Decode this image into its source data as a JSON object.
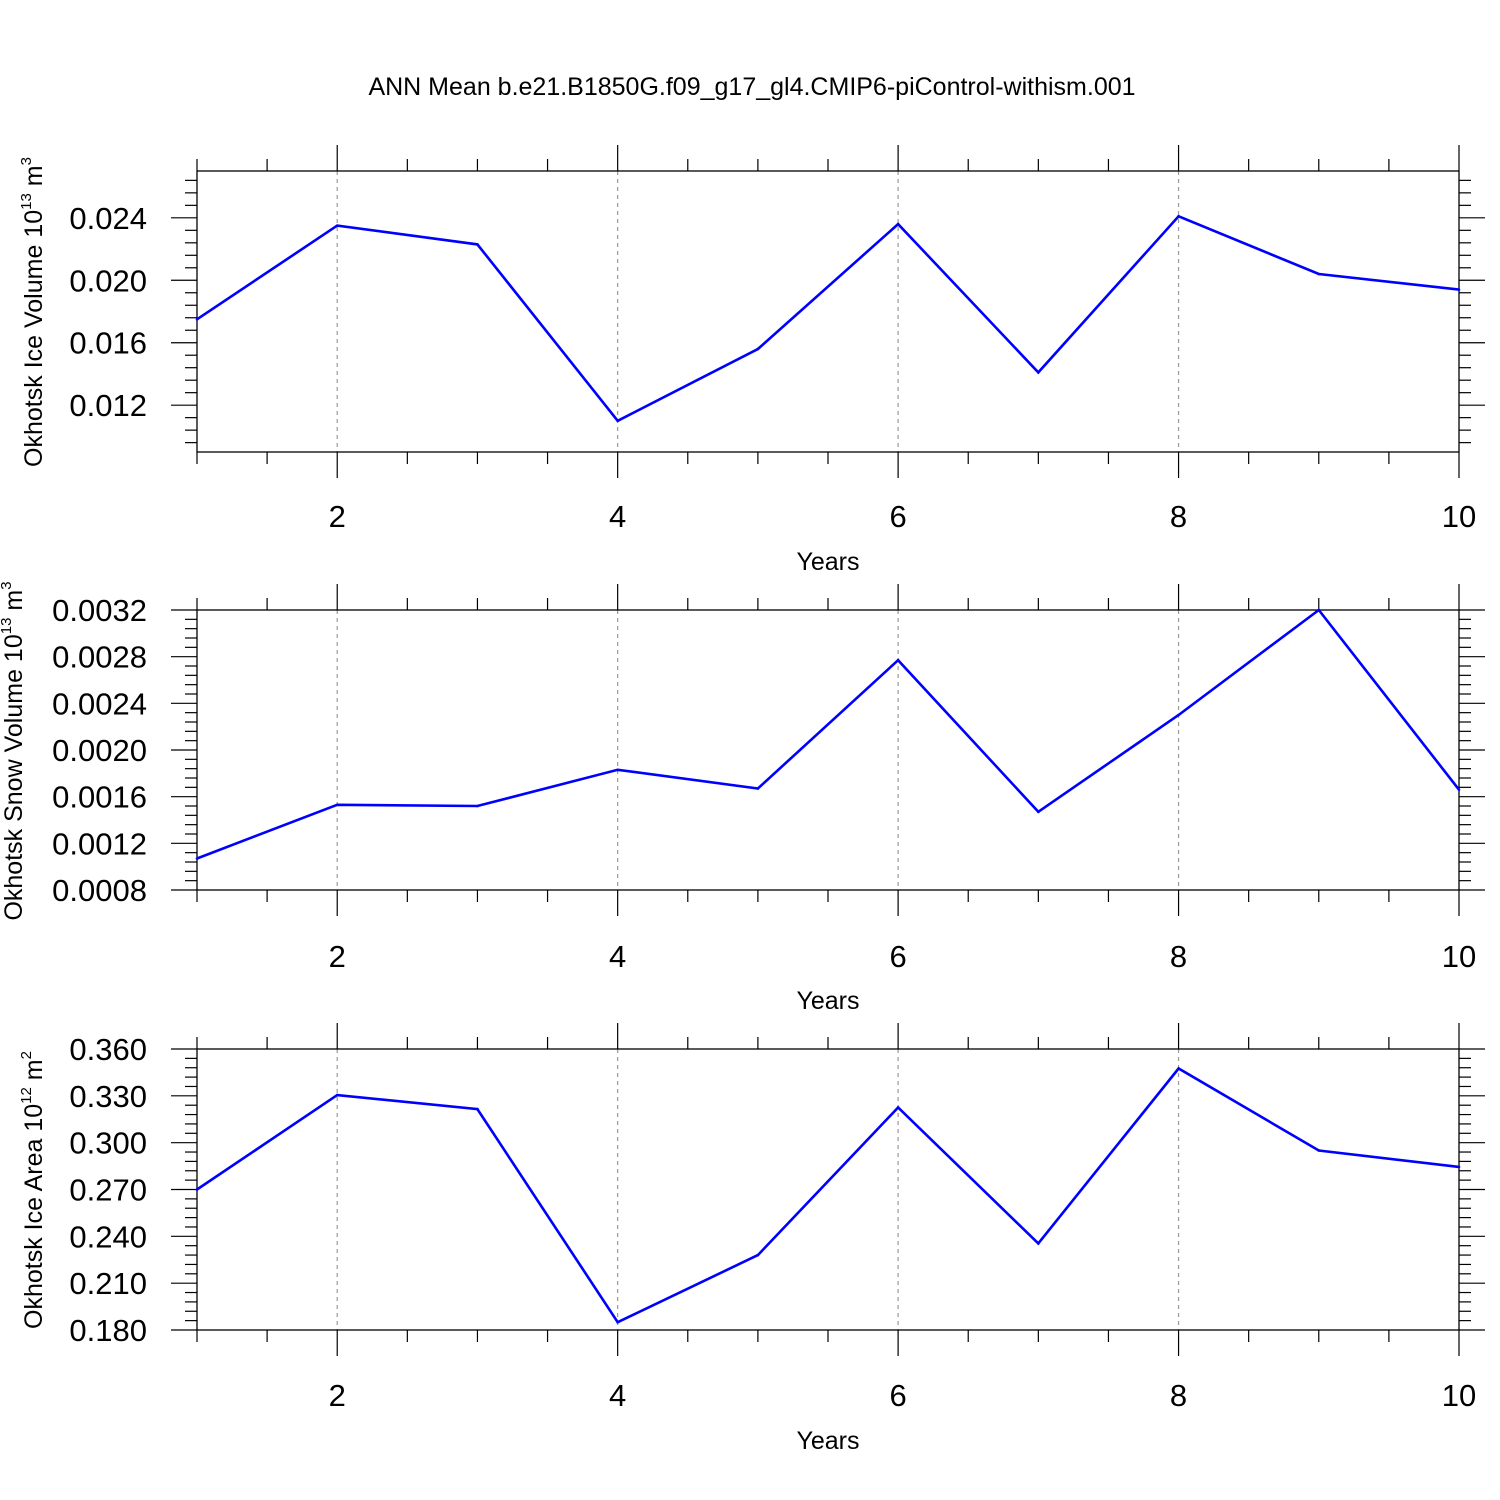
{
  "title": "ANN Mean b.e21.B1850G.f09_g17_gl4.CMIP6-piControl-withism.001",
  "chart_data": [
    {
      "type": "line",
      "xlabel": "Years",
      "ylabel_main": "Okhotsk Ice Volume 10",
      "ylabel_exp": "13",
      "ylabel_unit": " m",
      "ylabel_unit_exp": "3",
      "xlim": [
        1,
        10
      ],
      "ylim": [
        0.009,
        0.027
      ],
      "x_ticks": [
        "2",
        "4",
        "6",
        "8",
        "10"
      ],
      "y_ticks": [
        "0.012",
        "0.016",
        "0.020",
        "0.024"
      ],
      "line_color": "#0000ff",
      "x": [
        1,
        2,
        3,
        4,
        5,
        6,
        7,
        8,
        9,
        10
      ],
      "values": [
        0.0175,
        0.0235,
        0.0223,
        0.011,
        0.0156,
        0.0236,
        0.0141,
        0.0241,
        0.0204,
        0.0194
      ]
    },
    {
      "type": "line",
      "xlabel": "Years",
      "ylabel_main": "Okhotsk Snow Volume 10",
      "ylabel_exp": "13",
      "ylabel_unit": " m",
      "ylabel_unit_exp": "3",
      "xlim": [
        1,
        10
      ],
      "ylim": [
        0.0008,
        0.0032
      ],
      "x_ticks": [
        "2",
        "4",
        "6",
        "8",
        "10"
      ],
      "y_ticks": [
        "0.0008",
        "0.0012",
        "0.0016",
        "0.0020",
        "0.0024",
        "0.0028",
        "0.0032"
      ],
      "line_color": "#0000ff",
      "x": [
        1,
        2,
        3,
        4,
        5,
        6,
        7,
        8,
        9,
        10
      ],
      "values": [
        0.00107,
        0.00153,
        0.00152,
        0.00183,
        0.00167,
        0.00277,
        0.00147,
        0.0023,
        0.0032,
        0.00166
      ]
    },
    {
      "type": "line",
      "xlabel": "Years",
      "ylabel_main": "Okhotsk Ice Area 10",
      "ylabel_exp": "12",
      "ylabel_unit": " m",
      "ylabel_unit_exp": "2",
      "xlim": [
        1,
        10
      ],
      "ylim": [
        0.18,
        0.36
      ],
      "x_ticks": [
        "2",
        "4",
        "6",
        "8",
        "10"
      ],
      "y_ticks": [
        "0.180",
        "0.210",
        "0.240",
        "0.270",
        "0.300",
        "0.330",
        "0.360"
      ],
      "line_color": "#0000ff",
      "x": [
        1,
        2,
        3,
        4,
        5,
        6,
        7,
        8,
        9,
        10
      ],
      "values": [
        0.27,
        0.3305,
        0.3215,
        0.185,
        0.228,
        0.3225,
        0.2355,
        0.3475,
        0.295,
        0.2845
      ]
    }
  ]
}
